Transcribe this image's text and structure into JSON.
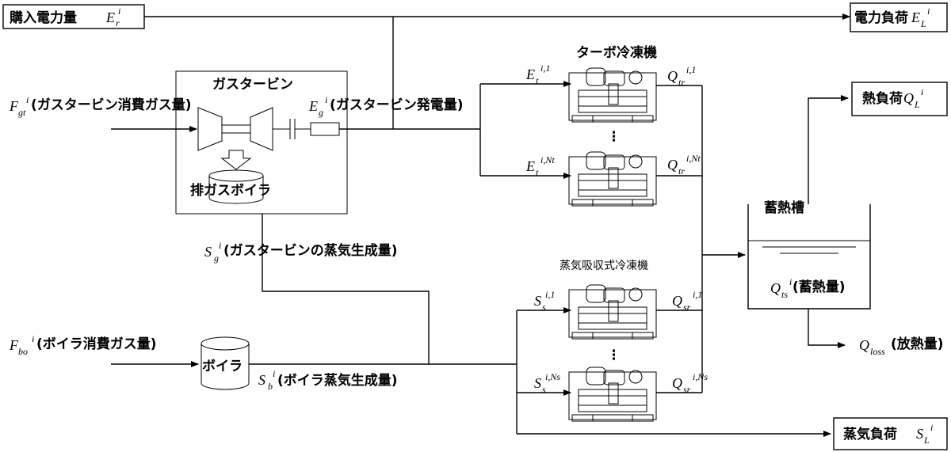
{
  "labels": {
    "purchased_power": "購入電力量",
    "power_load": "電力負荷",
    "turbo_chiller_title": "ターボ冷凍機",
    "gas_turbine_title": "ガスタービン",
    "gas_turbine_fuel": "(ガスタービン消費ガス量)",
    "gas_turbine_power": "(ガスタービン発電量)",
    "exhaust_boiler": "排ガスボイラ",
    "gas_turbine_steam": "(ガスタービンの蒸気生成量)",
    "heat_load": "熱負荷",
    "storage_tank": "蓄熱槽",
    "storage_amount": "(蓄熱量)",
    "heat_loss": "(放熱量)",
    "absorption_chiller_title": "蒸気吸収式冷凍機",
    "boiler_fuel": "(ボイラ消費ガス量)",
    "boiler": "ボイラ",
    "boiler_steam": "(ボイラ蒸気生成量)",
    "steam_load": "蒸気負荷",
    "dots": "⋮"
  },
  "symbols": {
    "Er": {
      "base": "E",
      "sub": "r",
      "sup": "i"
    },
    "EL": {
      "base": "E",
      "sub": "L",
      "sup": "i"
    },
    "Fgt": {
      "base": "F",
      "sub": "gt",
      "sup": "i"
    },
    "Eg": {
      "base": "E",
      "sub": "g",
      "sup": "i"
    },
    "Et1": {
      "base": "E",
      "sub": "t",
      "sup": "i,1"
    },
    "EtN": {
      "base": "E",
      "sub": "t",
      "sup": "i,Nt"
    },
    "Qtr1": {
      "base": "Q",
      "sub": "tr",
      "sup": "i,1"
    },
    "QtrN": {
      "base": "Q",
      "sub": "tr",
      "sup": "i,Nt"
    },
    "QL": {
      "base": "Q",
      "sub": "L",
      "sup": "i"
    },
    "Sg": {
      "base": "S",
      "sub": "g",
      "sup": "i"
    },
    "Qts": {
      "base": "Q",
      "sub": "ts",
      "sup": "i"
    },
    "Ss1": {
      "base": "S",
      "sub": "s",
      "sup": "i,1"
    },
    "SsN": {
      "base": "S",
      "sub": "s",
      "sup": "i,Ns"
    },
    "Qsr1": {
      "base": "Q",
      "sub": "sr",
      "sup": "i,1"
    },
    "QsrN": {
      "base": "Q",
      "sub": "sr",
      "sup": "i,Ns"
    },
    "Qloss": {
      "base": "Q",
      "sub": "loss",
      "sup": ""
    },
    "Fbo": {
      "base": "F",
      "sub": "bo",
      "sup": "i"
    },
    "Sb": {
      "base": "S",
      "sub": "b",
      "sup": "i"
    },
    "SL": {
      "base": "S",
      "sub": "L",
      "sup": "i"
    }
  }
}
